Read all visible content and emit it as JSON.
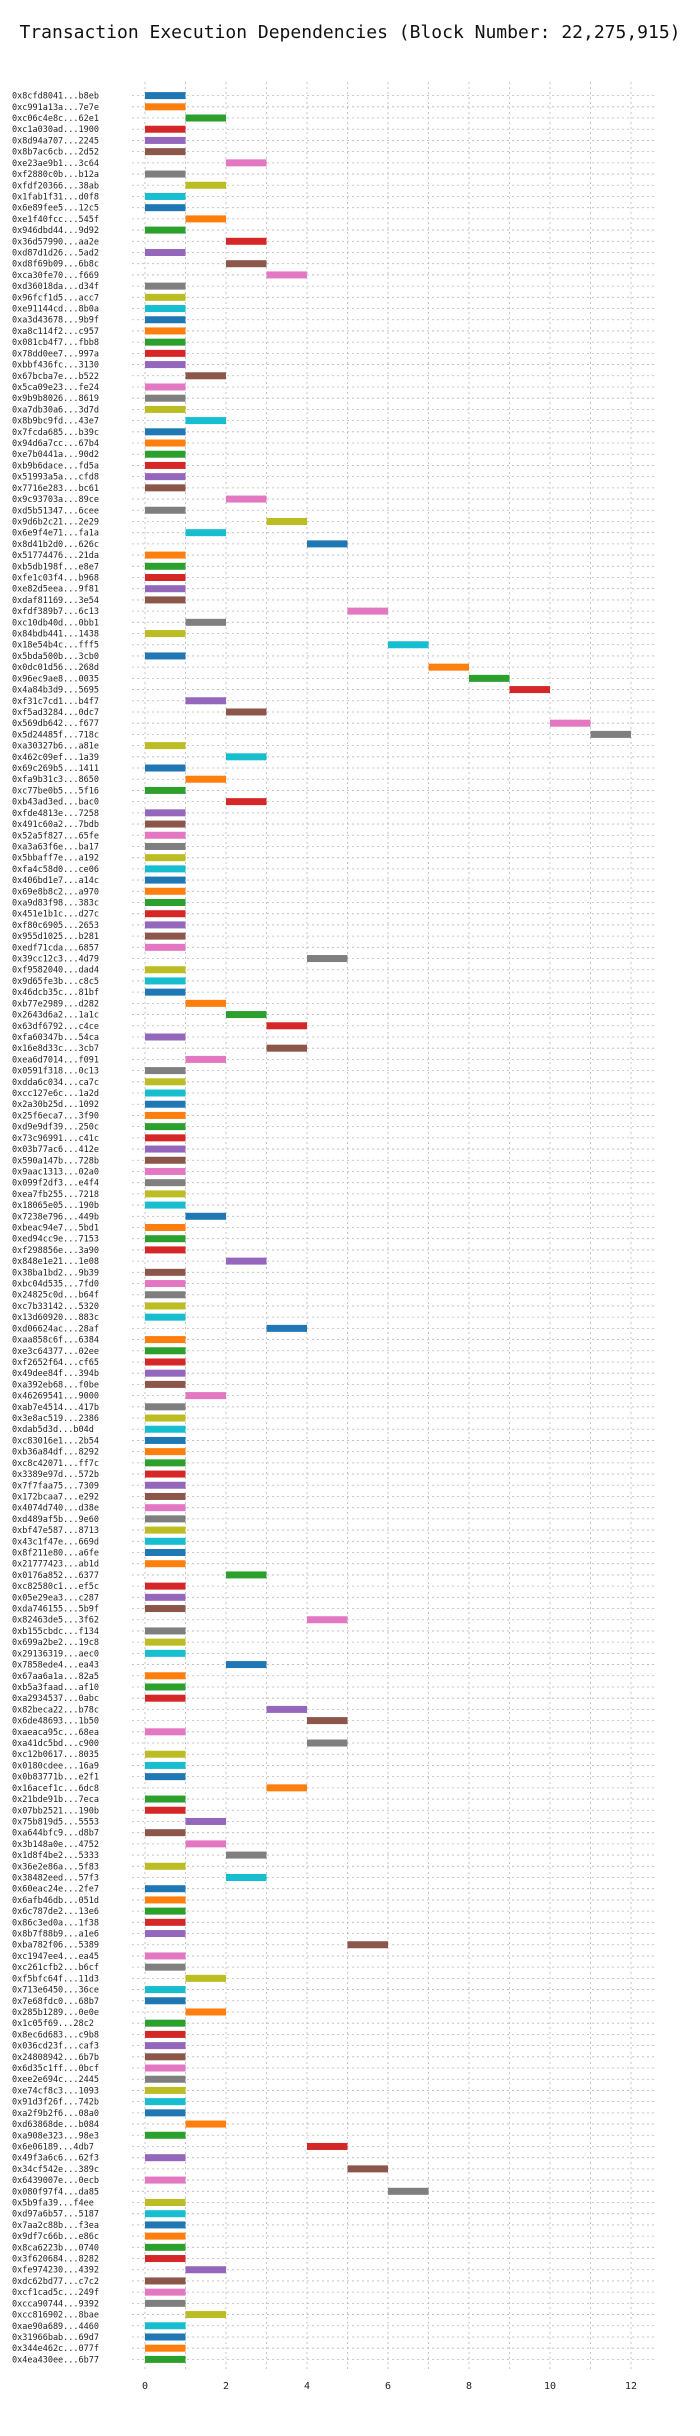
{
  "chart_data": {
    "type": "gantt",
    "title": "Transaction Execution Dependencies (Block Number: 22,275,915)",
    "xlabel": "",
    "ylabel": "",
    "xlim": [
      0,
      12.5
    ],
    "xticks": [
      0,
      2,
      4,
      6,
      8,
      10,
      12
    ],
    "grid": true,
    "colors": {
      "blue": "#1f77b4",
      "orange": "#ff7f0e",
      "green": "#2ca02c",
      "red": "#d62728",
      "purple": "#9467bd",
      "brown": "#8c564b",
      "pink": "#e377c2",
      "gray": "#7f7f7f",
      "olive": "#bcbd22",
      "cyan": "#17becf"
    },
    "color_cycle": [
      "blue",
      "orange",
      "green",
      "red",
      "purple",
      "brown",
      "pink",
      "gray",
      "olive",
      "cyan"
    ],
    "transactions": [
      {
        "label": "0x8cfd8041...b8eb",
        "start": 0
      },
      {
        "label": "0xc991a13a...7e7e",
        "start": 0
      },
      {
        "label": "0xc06c4e8c...62e1",
        "start": 1
      },
      {
        "label": "0xc1a030ad...1900",
        "start": 0
      },
      {
        "label": "0x8d94a707...2245",
        "start": 0
      },
      {
        "label": "0x8b7ac6cb...2d52",
        "start": 0
      },
      {
        "label": "0xe23ae9b1...3c64",
        "start": 2
      },
      {
        "label": "0xf2880c0b...b12a",
        "start": 0
      },
      {
        "label": "0xfdf20366...38ab",
        "start": 1
      },
      {
        "label": "0x1fab1f31...d0f8",
        "start": 0
      },
      {
        "label": "0x6e89fee5...12c5",
        "start": 0
      },
      {
        "label": "0xe1f40fcc...545f",
        "start": 1
      },
      {
        "label": "0x946dbd44...9d92",
        "start": 0
      },
      {
        "label": "0x36d57990...aa2e",
        "start": 2
      },
      {
        "label": "0xd87d1d26...5ad2",
        "start": 0
      },
      {
        "label": "0xd8f69b09...6b8c",
        "start": 2
      },
      {
        "label": "0xca30fe70...f669",
        "start": 3
      },
      {
        "label": "0xd36018da...d34f",
        "start": 0
      },
      {
        "label": "0x96fcf1d5...acc7",
        "start": 0
      },
      {
        "label": "0xe91144cd...8b0a",
        "start": 0
      },
      {
        "label": "0xa3d43678...9b9f",
        "start": 0
      },
      {
        "label": "0xa8c114f2...c957",
        "start": 0
      },
      {
        "label": "0x081cb4f7...fbb8",
        "start": 0
      },
      {
        "label": "0x78dd0ee7...997a",
        "start": 0
      },
      {
        "label": "0xbbf436fc...3130",
        "start": 0
      },
      {
        "label": "0x67bcba7e...b522",
        "start": 1
      },
      {
        "label": "0x5ca09e23...fe24",
        "start": 0
      },
      {
        "label": "0x9b9b8026...8619",
        "start": 0
      },
      {
        "label": "0xa7db30a6...3d7d",
        "start": 0
      },
      {
        "label": "0x8b9bc9fd...43e7",
        "start": 1
      },
      {
        "label": "0x7fcda685...b39c",
        "start": 0
      },
      {
        "label": "0x94d6a7cc...67b4",
        "start": 0
      },
      {
        "label": "0xe7b0441a...90d2",
        "start": 0
      },
      {
        "label": "0xb9b6dace...fd5a",
        "start": 0
      },
      {
        "label": "0x51993a5a...cfd8",
        "start": 0
      },
      {
        "label": "0x7716e283...bc61",
        "start": 0
      },
      {
        "label": "0x9c93703a...89ce",
        "start": 2
      },
      {
        "label": "0xd5b51347...6cee",
        "start": 0
      },
      {
        "label": "0x9d6b2c21...2e29",
        "start": 3
      },
      {
        "label": "0x6e9f4e71...fa1a",
        "start": 1
      },
      {
        "label": "0x8d41b2d0...626c",
        "start": 4
      },
      {
        "label": "0x51774476...21da",
        "start": 0
      },
      {
        "label": "0xb5db198f...e8e7",
        "start": 0
      },
      {
        "label": "0xfe1c03f4...b968",
        "start": 0
      },
      {
        "label": "0xe82d5eea...9f81",
        "start": 0
      },
      {
        "label": "0xdaf81169...3e54",
        "start": 0
      },
      {
        "label": "0xfdf389b7...6c13",
        "start": 5
      },
      {
        "label": "0xc10db40d...0bb1",
        "start": 1
      },
      {
        "label": "0x84bdb441...1438",
        "start": 0
      },
      {
        "label": "0x18e54b4c...fff5",
        "start": 6
      },
      {
        "label": "0x5bda500b...3cb0",
        "start": 0
      },
      {
        "label": "0x0dc01d56...268d",
        "start": 7
      },
      {
        "label": "0x96ec9ae8...0035",
        "start": 8
      },
      {
        "label": "0x4a84b3d9...5695",
        "start": 9
      },
      {
        "label": "0xf31c7cd1...b4f7",
        "start": 1
      },
      {
        "label": "0xf5ad3284...0dc7",
        "start": 2
      },
      {
        "label": "0x569db642...f677",
        "start": 10
      },
      {
        "label": "0x5d24485f...718c",
        "start": 11
      },
      {
        "label": "0xa30327b6...a81e",
        "start": 0
      },
      {
        "label": "0x462c09ef...1a39",
        "start": 2
      },
      {
        "label": "0x69c269b5...1411",
        "start": 0
      },
      {
        "label": "0xfa9b31c3...8650",
        "start": 1
      },
      {
        "label": "0xc77be0b5...5f16",
        "start": 0
      },
      {
        "label": "0xb43ad3ed...bac0",
        "start": 2
      },
      {
        "label": "0xfde4813e...7258",
        "start": 0
      },
      {
        "label": "0x491c60a2...7bdb",
        "start": 0
      },
      {
        "label": "0x52a5f827...65fe",
        "start": 0
      },
      {
        "label": "0xa3a63f6e...ba17",
        "start": 0
      },
      {
        "label": "0x5bbaff7e...a192",
        "start": 0
      },
      {
        "label": "0xfa4c58d0...ce06",
        "start": 0
      },
      {
        "label": "0x406bd1e7...a14c",
        "start": 0
      },
      {
        "label": "0x69e8b8c2...a970",
        "start": 0
      },
      {
        "label": "0xa9d83f98...383c",
        "start": 0
      },
      {
        "label": "0x451e1b1c...d27c",
        "start": 0
      },
      {
        "label": "0xf80c6905...2653",
        "start": 0
      },
      {
        "label": "0x955d1025...b281",
        "start": 0
      },
      {
        "label": "0xedf71cda...6857",
        "start": 0
      },
      {
        "label": "0x39cc12c3...4d79",
        "start": 4
      },
      {
        "label": "0xf9582040...dad4",
        "start": 0
      },
      {
        "label": "0x9d65fe3b...c8c5",
        "start": 0
      },
      {
        "label": "0x46dcb35c...81bf",
        "start": 0
      },
      {
        "label": "0xb77e2989...d282",
        "start": 1
      },
      {
        "label": "0x2643d6a2...1a1c",
        "start": 2
      },
      {
        "label": "0x63df6792...c4ce",
        "start": 3
      },
      {
        "label": "0xfa60347b...54ca",
        "start": 0
      },
      {
        "label": "0x16e8d33c...3cb7",
        "start": 3
      },
      {
        "label": "0xea6d7014...f091",
        "start": 1
      },
      {
        "label": "0x0591f318...0c13",
        "start": 0
      },
      {
        "label": "0xdda6c034...ca7c",
        "start": 0
      },
      {
        "label": "0xcc127e6c...1a2d",
        "start": 0
      },
      {
        "label": "0x2a30b25d...1092",
        "start": 0
      },
      {
        "label": "0x25f6eca7...3f90",
        "start": 0
      },
      {
        "label": "0xd9e9df39...250c",
        "start": 0
      },
      {
        "label": "0x73c96991...c41c",
        "start": 0
      },
      {
        "label": "0x03b77ac6...412e",
        "start": 0
      },
      {
        "label": "0x590a147b...728b",
        "start": 0
      },
      {
        "label": "0x9aac1313...02a0",
        "start": 0
      },
      {
        "label": "0x099f2df3...e4f4",
        "start": 0
      },
      {
        "label": "0xea7fb255...7218",
        "start": 0
      },
      {
        "label": "0x18065e05...190b",
        "start": 0
      },
      {
        "label": "0x7238e796...449b",
        "start": 1
      },
      {
        "label": "0xbeac94e7...5bd1",
        "start": 0
      },
      {
        "label": "0xed94cc9e...7153",
        "start": 0
      },
      {
        "label": "0xf298856e...3a90",
        "start": 0
      },
      {
        "label": "0x848e1e21...1e08",
        "start": 2
      },
      {
        "label": "0x38ba1bd2...9b39",
        "start": 0
      },
      {
        "label": "0xbc04d535...7fd0",
        "start": 0
      },
      {
        "label": "0x24825c0d...b64f",
        "start": 0
      },
      {
        "label": "0xc7b33142...5320",
        "start": 0
      },
      {
        "label": "0x13d60920...883c",
        "start": 0
      },
      {
        "label": "0xd06624ac...28af",
        "start": 3
      },
      {
        "label": "0xaa858c6f...6384",
        "start": 0
      },
      {
        "label": "0xe3c64377...02ee",
        "start": 0
      },
      {
        "label": "0xf2652f64...cf65",
        "start": 0
      },
      {
        "label": "0x49dee84f...394b",
        "start": 0
      },
      {
        "label": "0xa392eb68...f0be",
        "start": 0
      },
      {
        "label": "0x46269541...9000",
        "start": 1
      },
      {
        "label": "0xab7e4514...417b",
        "start": 0
      },
      {
        "label": "0x3e8ac519...2386",
        "start": 0
      },
      {
        "label": "0xdab5d3d...b04d",
        "start": 0
      },
      {
        "label": "0xc83016e1...2b54",
        "start": 0
      },
      {
        "label": "0xb36a84df...8292",
        "start": 0
      },
      {
        "label": "0xc8c42071...ff7c",
        "start": 0
      },
      {
        "label": "0x3389e97d...572b",
        "start": 0
      },
      {
        "label": "0x7f7faa75...7309",
        "start": 0
      },
      {
        "label": "0x172bcaa7...e292",
        "start": 0
      },
      {
        "label": "0x4074d740...d38e",
        "start": 0
      },
      {
        "label": "0xd489af5b...9e60",
        "start": 0
      },
      {
        "label": "0xbf47e587...8713",
        "start": 0
      },
      {
        "label": "0x43c1f47e...669d",
        "start": 0
      },
      {
        "label": "0x8f211e80...a6fe",
        "start": 0
      },
      {
        "label": "0x21777423...ab1d",
        "start": 0
      },
      {
        "label": "0x0176a852...6377",
        "start": 2
      },
      {
        "label": "0xc82580c1...ef5c",
        "start": 0
      },
      {
        "label": "0x05e29ea3...c287",
        "start": 0
      },
      {
        "label": "0xda746155...5b9f",
        "start": 0
      },
      {
        "label": "0x82463de5...3f62",
        "start": 4
      },
      {
        "label": "0xb155cbdc...f134",
        "start": 0
      },
      {
        "label": "0x699a2be2...19c8",
        "start": 0
      },
      {
        "label": "0x29136319...aec0",
        "start": 0
      },
      {
        "label": "0x7858ede4...ea43",
        "start": 2
      },
      {
        "label": "0x67aa6a1a...82a5",
        "start": 0
      },
      {
        "label": "0xb5a3faad...af10",
        "start": 0
      },
      {
        "label": "0xa2934537...0abc",
        "start": 0
      },
      {
        "label": "0x82beca22...b78c",
        "start": 3
      },
      {
        "label": "0x6de48693...1b50",
        "start": 4
      },
      {
        "label": "0xaeaca95c...68ea",
        "start": 0
      },
      {
        "label": "0xa41dc5bd...c900",
        "start": 4
      },
      {
        "label": "0xc12b0617...8035",
        "start": 0
      },
      {
        "label": "0x0180cdee...16a9",
        "start": 0
      },
      {
        "label": "0x0b83771b...e2f1",
        "start": 0
      },
      {
        "label": "0x16acef1c...6dc8",
        "start": 3
      },
      {
        "label": "0x21bde91b...7eca",
        "start": 0
      },
      {
        "label": "0x07bb2521...190b",
        "start": 0
      },
      {
        "label": "0x75b819d5...5553",
        "start": 1
      },
      {
        "label": "0xa644bfc9...d8b7",
        "start": 0
      },
      {
        "label": "0x3b148a0e...4752",
        "start": 1
      },
      {
        "label": "0x1d8f4be2...5333",
        "start": 2
      },
      {
        "label": "0x36e2e86a...5f83",
        "start": 0
      },
      {
        "label": "0x38482eed...57f3",
        "start": 2
      },
      {
        "label": "0x60eac24e...2fe7",
        "start": 0
      },
      {
        "label": "0x6afb46db...051d",
        "start": 0
      },
      {
        "label": "0x6c787de2...13e6",
        "start": 0
      },
      {
        "label": "0x86c3ed0a...1f38",
        "start": 0
      },
      {
        "label": "0x8b7f88b9...a1e6",
        "start": 0
      },
      {
        "label": "0xba782f06...5389",
        "start": 5
      },
      {
        "label": "0xc1947ee4...ea45",
        "start": 0
      },
      {
        "label": "0xc261cfb2...b6cf",
        "start": 0
      },
      {
        "label": "0xf5bfc64f...11d3",
        "start": 1
      },
      {
        "label": "0x713e6450...36ce",
        "start": 0
      },
      {
        "label": "0x7e68fdc0...68b7",
        "start": 0
      },
      {
        "label": "0x285b1289...0e0e",
        "start": 1
      },
      {
        "label": "0x1c05f69...28c2",
        "start": 0
      },
      {
        "label": "0x8ec6d683...c9b8",
        "start": 0
      },
      {
        "label": "0x036cd23f...caf3",
        "start": 0
      },
      {
        "label": "0x24808942...6b7b",
        "start": 0
      },
      {
        "label": "0x6d35c1ff...0bcf",
        "start": 0
      },
      {
        "label": "0xee2e694c...2445",
        "start": 0
      },
      {
        "label": "0xe74cf8c3...1093",
        "start": 0
      },
      {
        "label": "0x91d3f26f...742b",
        "start": 0
      },
      {
        "label": "0xa2f9b2f6...08a0",
        "start": 0
      },
      {
        "label": "0xd63868de...b084",
        "start": 1
      },
      {
        "label": "0xa908e323...98e3",
        "start": 0
      },
      {
        "label": "0x6e06189...4db7",
        "start": 4
      },
      {
        "label": "0x49f3a6c6...62f3",
        "start": 0
      },
      {
        "label": "0x34cf542e...389c",
        "start": 5
      },
      {
        "label": "0x6439007e...0ecb",
        "start": 0
      },
      {
        "label": "0x080f97f4...da85",
        "start": 6
      },
      {
        "label": "0x5b9fa39...f4ee",
        "start": 0
      },
      {
        "label": "0xd97a6b57...5187",
        "start": 0
      },
      {
        "label": "0x7aa2c88b...f3ea",
        "start": 0
      },
      {
        "label": "0x9df7c66b...e86c",
        "start": 0
      },
      {
        "label": "0x8ca6223b...0740",
        "start": 0
      },
      {
        "label": "0x3f620684...8282",
        "start": 0
      },
      {
        "label": "0xfe974230...4392",
        "start": 1
      },
      {
        "label": "0xdc62bd77...c7c2",
        "start": 0
      },
      {
        "label": "0xcf1cad5c...249f",
        "start": 0
      },
      {
        "label": "0xcca90744...9392",
        "start": 0
      },
      {
        "label": "0xcc816902...8bae",
        "start": 1
      },
      {
        "label": "0xae90a689...4460",
        "start": 0
      },
      {
        "label": "0x31966bab...69d7",
        "start": 0
      },
      {
        "label": "0x344e462c...077f",
        "start": 0
      },
      {
        "label": "0x4ea430ee...6b77",
        "start": 0
      }
    ]
  }
}
